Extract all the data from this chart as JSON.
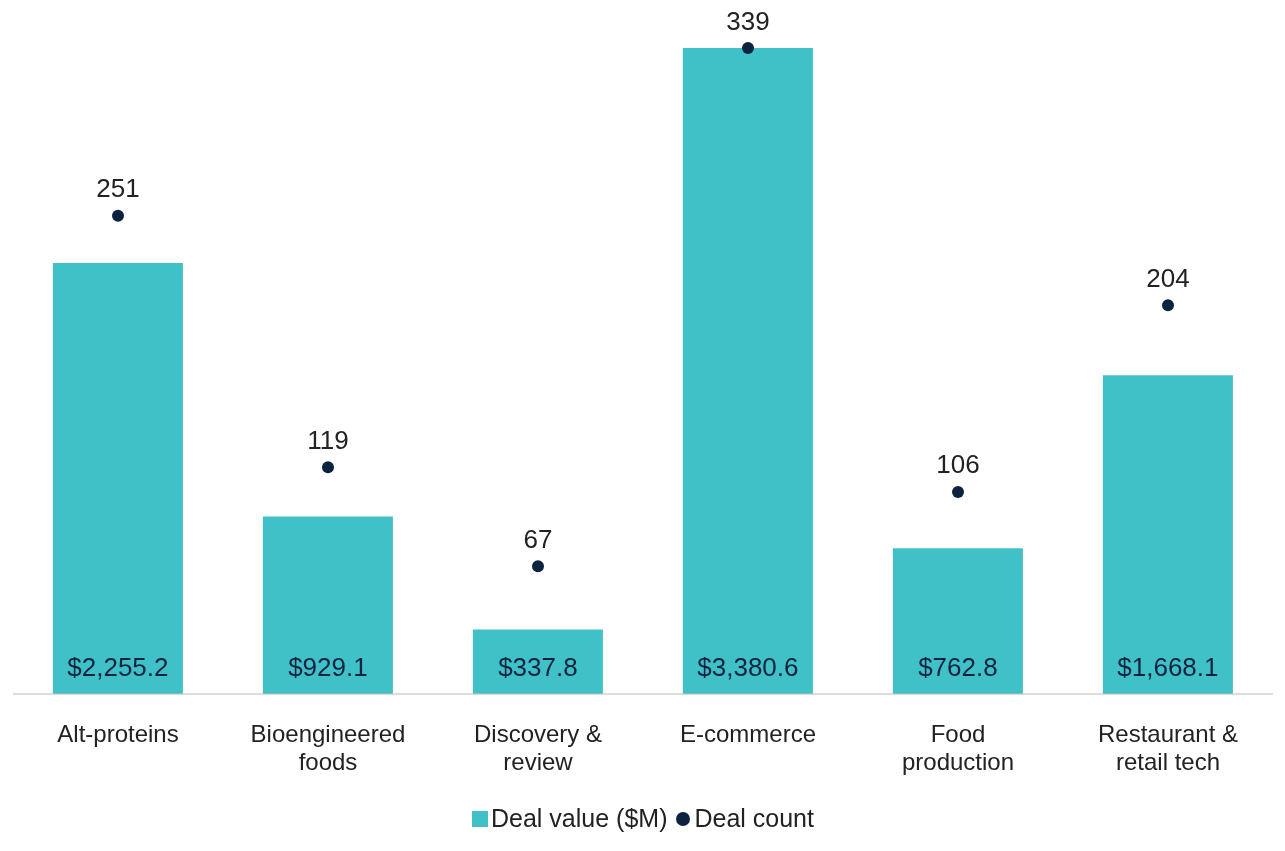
{
  "chart_data": {
    "type": "bar",
    "categories": [
      "Alt-proteins",
      "Bioengineered foods",
      "Discovery & review",
      "E-commerce",
      "Food production",
      "Restaurant & retail tech"
    ],
    "series": [
      {
        "name": "Deal value ($M)",
        "color": "#40c1c7",
        "values": [
          2255.2,
          929.1,
          337.8,
          3380.6,
          762.8,
          1668.1
        ],
        "value_labels": [
          "$2,255.2",
          "$929.1",
          "$337.8",
          "$3,380.6",
          "$762.8",
          "$1,668.1"
        ]
      },
      {
        "name": "Deal count",
        "type": "scatter",
        "axis": "y2",
        "color": "#0c2340",
        "values": [
          251,
          119,
          67,
          339,
          106,
          204
        ],
        "value_labels": [
          "251",
          "119",
          "67",
          "339",
          "106",
          "204"
        ]
      }
    ],
    "marker": "circle",
    "legend": "bottom",
    "grid": false
  }
}
